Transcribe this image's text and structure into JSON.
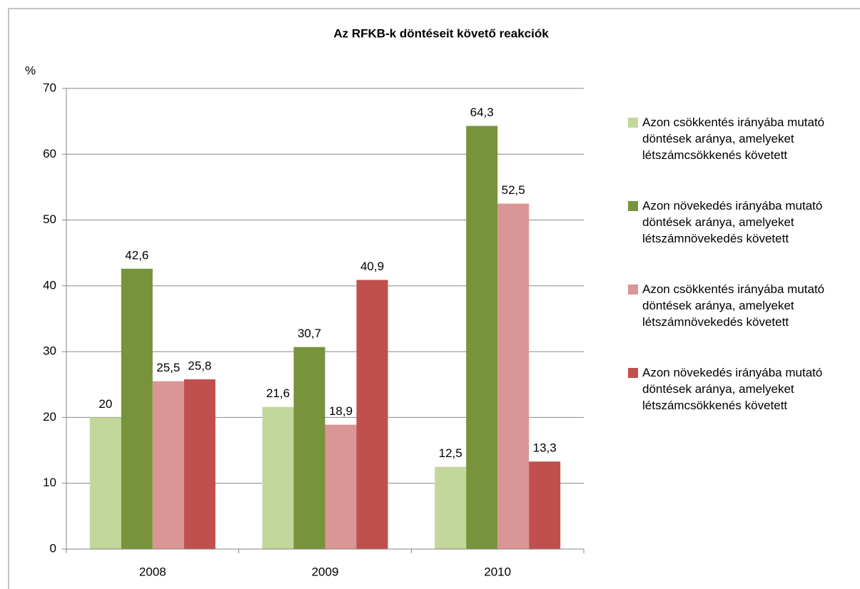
{
  "chart_data": {
    "type": "bar",
    "title": "Az RFKB-k döntéseit követő reakciók",
    "y_label": "%",
    "categories": [
      "2008",
      "2009",
      "2010"
    ],
    "series": [
      {
        "name": "Azon csökkentés irányába mutató döntések aránya, amelyeket létszámcsökkenés követett",
        "color": "#c4d79b",
        "values": [
          20,
          21.6,
          12.5
        ],
        "value_labels": [
          "20",
          "21,6",
          "12,5"
        ]
      },
      {
        "name": "Azon növekedés irányába mutató döntések aránya, amelyeket létszámnövekedés követett",
        "color": "#77933c",
        "values": [
          42.6,
          30.7,
          64.3
        ],
        "value_labels": [
          "42,6",
          "30,7",
          "64,3"
        ]
      },
      {
        "name": "Azon csökkentés irányába mutató döntések aránya, amelyeket létszámnövekedés követett",
        "color": "#da9694",
        "values": [
          25.5,
          18.9,
          52.5
        ],
        "value_labels": [
          "25,5",
          "18,9",
          "52,5"
        ]
      },
      {
        "name": "Azon növekedés irányába mutató döntések aránya, amelyeket létszámcsökkenés követett",
        "color": "#c0504d",
        "values": [
          25.8,
          40.9,
          13.3
        ],
        "value_labels": [
          "25,8",
          "40,9",
          "13,3"
        ]
      }
    ],
    "ylim": [
      0,
      70
    ],
    "yticks": [
      0,
      10,
      20,
      30,
      40,
      50,
      60,
      70
    ],
    "grid": true,
    "legend": "right"
  }
}
